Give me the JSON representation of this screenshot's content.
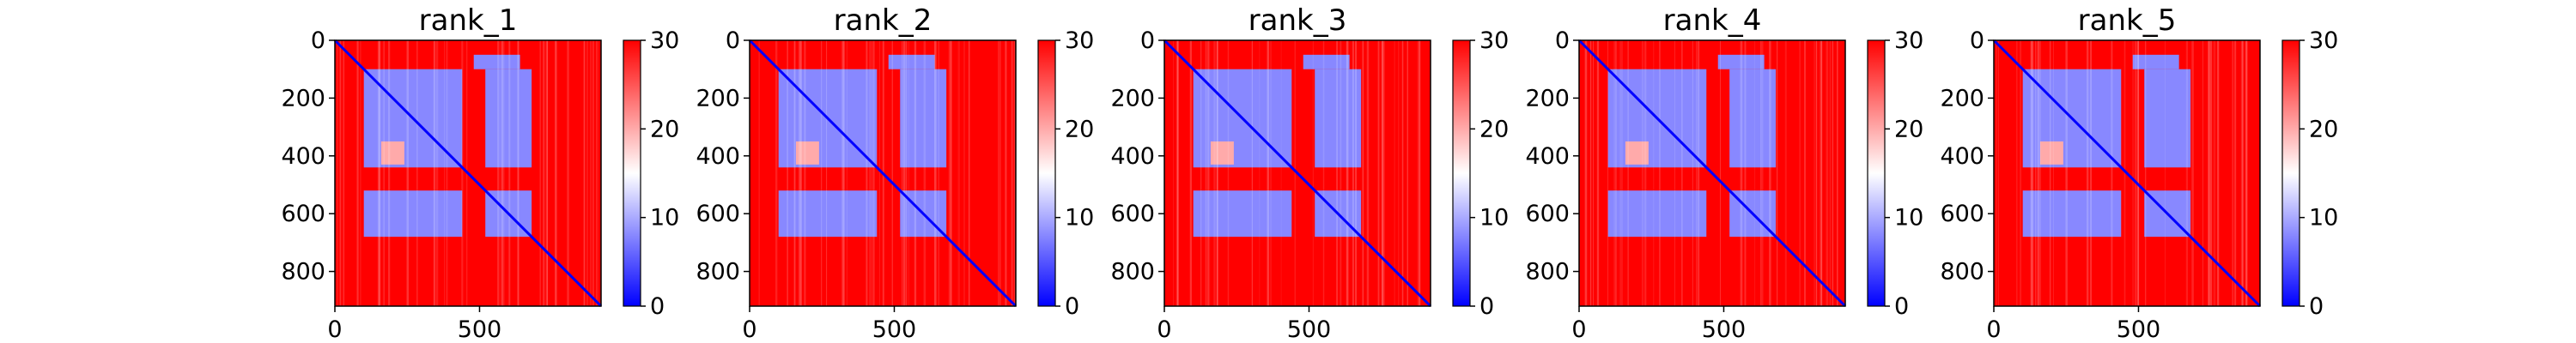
{
  "figure": {
    "type": "pae_heatmap_grid",
    "colormap": "bwr",
    "colors": {
      "low": "#0000ff",
      "mid": "#ffffff",
      "high": "#ff0000"
    }
  },
  "chart_data": [
    {
      "type": "heatmap",
      "title": "rank_1",
      "x_ticks": [
        0,
        500
      ],
      "y_ticks": [
        0,
        200,
        400,
        600,
        800
      ],
      "x_range": [
        0,
        920
      ],
      "y_range": [
        920,
        0
      ],
      "colorbar": {
        "ticks": [
          0,
          10,
          20,
          30
        ],
        "range": [
          0,
          30
        ]
      },
      "blocks": [
        {
          "rows": [
            100,
            440
          ],
          "cols": [
            100,
            440
          ],
          "value": 8
        },
        {
          "rows": [
            520,
            680
          ],
          "cols": [
            520,
            680
          ],
          "value": 8
        },
        {
          "rows": [
            520,
            680
          ],
          "cols": [
            100,
            440
          ],
          "value": 8
        },
        {
          "rows": [
            100,
            440
          ],
          "cols": [
            520,
            680
          ],
          "value": 8
        },
        {
          "rows": [
            50,
            100
          ],
          "cols": [
            480,
            640
          ],
          "value": 8
        },
        {
          "rows": [
            350,
            430
          ],
          "cols": [
            160,
            240
          ],
          "value": 20
        }
      ]
    },
    {
      "type": "heatmap",
      "title": "rank_2",
      "x_ticks": [
        0,
        500
      ],
      "y_ticks": [
        0,
        200,
        400,
        600,
        800
      ],
      "x_range": [
        0,
        920
      ],
      "y_range": [
        920,
        0
      ],
      "colorbar": {
        "ticks": [
          0,
          10,
          20,
          30
        ],
        "range": [
          0,
          30
        ]
      },
      "blocks": [
        {
          "rows": [
            100,
            440
          ],
          "cols": [
            100,
            440
          ],
          "value": 8
        },
        {
          "rows": [
            520,
            680
          ],
          "cols": [
            520,
            680
          ],
          "value": 8
        },
        {
          "rows": [
            520,
            680
          ],
          "cols": [
            100,
            440
          ],
          "value": 8
        },
        {
          "rows": [
            100,
            440
          ],
          "cols": [
            520,
            680
          ],
          "value": 8
        },
        {
          "rows": [
            50,
            100
          ],
          "cols": [
            480,
            640
          ],
          "value": 8
        },
        {
          "rows": [
            350,
            430
          ],
          "cols": [
            160,
            240
          ],
          "value": 20
        }
      ]
    },
    {
      "type": "heatmap",
      "title": "rank_3",
      "x_ticks": [
        0,
        500
      ],
      "y_ticks": [
        0,
        200,
        400,
        600,
        800
      ],
      "x_range": [
        0,
        920
      ],
      "y_range": [
        920,
        0
      ],
      "colorbar": {
        "ticks": [
          0,
          10,
          20,
          30
        ],
        "range": [
          0,
          30
        ]
      },
      "blocks": [
        {
          "rows": [
            100,
            440
          ],
          "cols": [
            100,
            440
          ],
          "value": 8
        },
        {
          "rows": [
            520,
            680
          ],
          "cols": [
            520,
            680
          ],
          "value": 8
        },
        {
          "rows": [
            520,
            680
          ],
          "cols": [
            100,
            440
          ],
          "value": 8
        },
        {
          "rows": [
            100,
            440
          ],
          "cols": [
            520,
            680
          ],
          "value": 8
        },
        {
          "rows": [
            50,
            100
          ],
          "cols": [
            480,
            640
          ],
          "value": 8
        },
        {
          "rows": [
            350,
            430
          ],
          "cols": [
            160,
            240
          ],
          "value": 20
        }
      ]
    },
    {
      "type": "heatmap",
      "title": "rank_4",
      "x_ticks": [
        0,
        500
      ],
      "y_ticks": [
        0,
        200,
        400,
        600,
        800
      ],
      "x_range": [
        0,
        920
      ],
      "y_range": [
        920,
        0
      ],
      "colorbar": {
        "ticks": [
          0,
          10,
          20,
          30
        ],
        "range": [
          0,
          30
        ]
      },
      "blocks": [
        {
          "rows": [
            100,
            440
          ],
          "cols": [
            100,
            440
          ],
          "value": 8
        },
        {
          "rows": [
            520,
            680
          ],
          "cols": [
            520,
            680
          ],
          "value": 8
        },
        {
          "rows": [
            520,
            680
          ],
          "cols": [
            100,
            440
          ],
          "value": 8
        },
        {
          "rows": [
            100,
            440
          ],
          "cols": [
            520,
            680
          ],
          "value": 8
        },
        {
          "rows": [
            50,
            100
          ],
          "cols": [
            480,
            640
          ],
          "value": 8
        },
        {
          "rows": [
            350,
            430
          ],
          "cols": [
            160,
            240
          ],
          "value": 20
        }
      ]
    },
    {
      "type": "heatmap",
      "title": "rank_5",
      "x_ticks": [
        0,
        500
      ],
      "y_ticks": [
        0,
        200,
        400,
        600,
        800
      ],
      "x_range": [
        0,
        920
      ],
      "y_range": [
        920,
        0
      ],
      "colorbar": {
        "ticks": [
          0,
          10,
          20,
          30
        ],
        "range": [
          0,
          30
        ]
      },
      "blocks": [
        {
          "rows": [
            100,
            440
          ],
          "cols": [
            100,
            440
          ],
          "value": 8
        },
        {
          "rows": [
            520,
            680
          ],
          "cols": [
            520,
            680
          ],
          "value": 8
        },
        {
          "rows": [
            520,
            680
          ],
          "cols": [
            100,
            440
          ],
          "value": 8
        },
        {
          "rows": [
            100,
            440
          ],
          "cols": [
            520,
            680
          ],
          "value": 8
        },
        {
          "rows": [
            50,
            100
          ],
          "cols": [
            480,
            640
          ],
          "value": 8
        },
        {
          "rows": [
            350,
            430
          ],
          "cols": [
            160,
            240
          ],
          "value": 20
        }
      ]
    }
  ]
}
